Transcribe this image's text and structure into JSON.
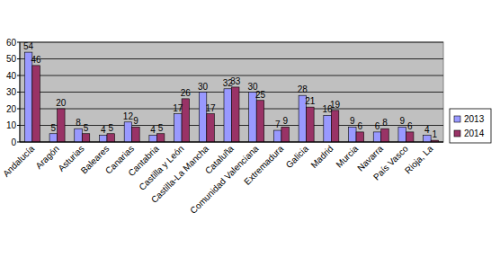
{
  "chart_data": {
    "type": "bar",
    "categories": [
      "Andalucía",
      "Aragón",
      "Asturias",
      "Baleares",
      "Canarias",
      "Cantabria",
      "Castilla y León",
      "Castilla-La Mancha",
      "Cataluña",
      "Comunidad Valenciana",
      "Extremadura",
      "Galicia",
      "Madrid",
      "Murcia",
      "Navarra",
      "País Vasco",
      "Rioja, La"
    ],
    "series": [
      {
        "name": "2013",
        "color": "#9999ff",
        "values": [
          54,
          5,
          8,
          4,
          12,
          4,
          17,
          30,
          32,
          30,
          7,
          28,
          16,
          9,
          6,
          9,
          4
        ]
      },
      {
        "name": "2014",
        "color": "#993366",
        "values": [
          46,
          20,
          5,
          5,
          9,
          5,
          26,
          17,
          33,
          25,
          9,
          21,
          19,
          6,
          8,
          6,
          1
        ]
      }
    ],
    "ylim": [
      0,
      60
    ],
    "yticks": [
      0,
      10,
      20,
      30,
      40,
      50,
      60
    ],
    "grid": true,
    "legend": "right",
    "data_labels": true
  }
}
